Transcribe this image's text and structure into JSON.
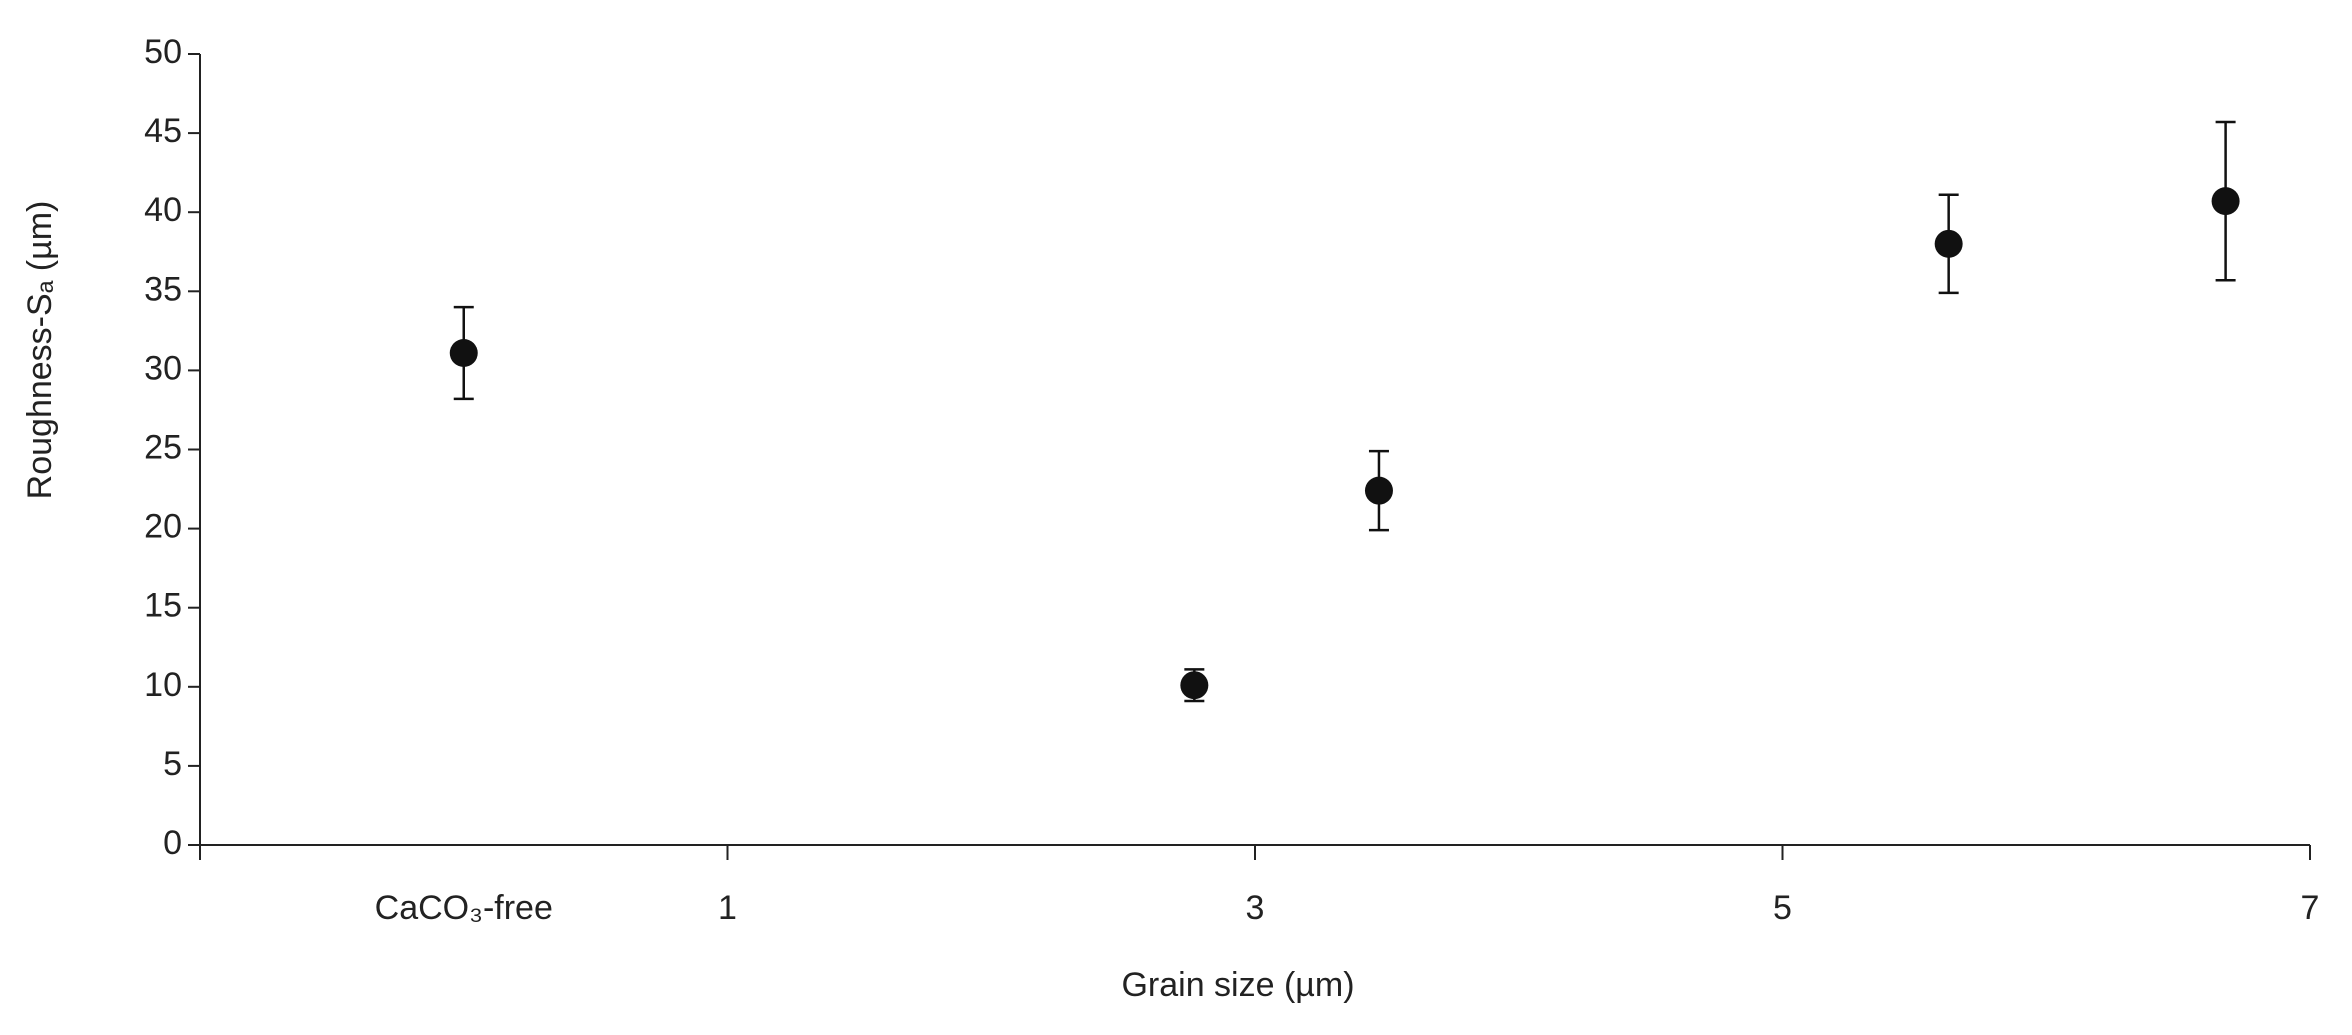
{
  "chart_data": {
    "type": "scatter",
    "x_label": "Grain size (µm)",
    "y_label": "Roughness-Sₐ (µm)",
    "x": [
      0,
      2.77,
      3.47,
      5.63,
      6.68
    ],
    "series": [
      {
        "color": "#111111",
        "values": [
          31.1,
          10.1,
          22.4,
          38.0,
          40.7
        ],
        "errors": [
          2.9,
          1.0,
          2.5,
          3.1,
          5.0
        ]
      }
    ],
    "xlim": [
      -1,
      7
    ],
    "xticks": [
      {
        "value": 0,
        "label": "CaCO₃-free"
      },
      1,
      3,
      5,
      7
    ],
    "ylim": [
      0,
      50
    ],
    "yticks": [
      0,
      5,
      10,
      15,
      20,
      25,
      30,
      35,
      40,
      45,
      50
    ],
    "grid": false
  }
}
